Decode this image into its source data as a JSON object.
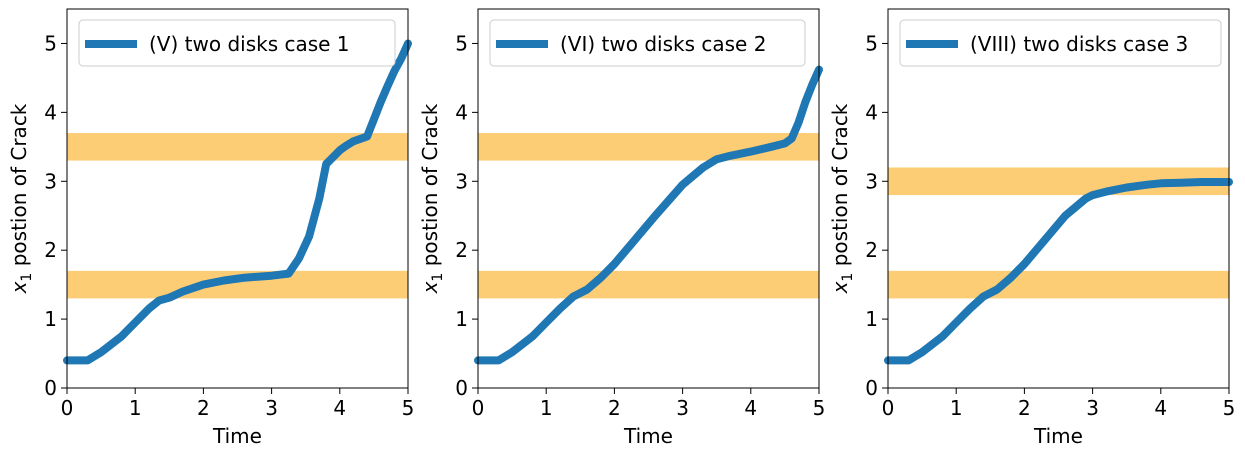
{
  "chart_data": [
    {
      "type": "line",
      "xlabel": "Time",
      "ylabel": "x_1 postion of Crack",
      "ylabel_sub": "1",
      "ylabel_rest": " postion of Crack",
      "xlim": [
        0,
        5
      ],
      "ylim": [
        0,
        5.5
      ],
      "xticks": [
        "0",
        "1",
        "2",
        "3",
        "4",
        "5"
      ],
      "yticks": [
        "0",
        "1",
        "2",
        "3",
        "4",
        "5"
      ],
      "legend_placement": "upper-left",
      "line_color": "#1f77b4",
      "band_color": "#fdbf50",
      "bands": [
        [
          1.3,
          1.7
        ],
        [
          3.3,
          3.7
        ]
      ],
      "series": [
        {
          "name": "(V) two disks case 1",
          "x": [
            0,
            0.3,
            0.5,
            0.8,
            1.0,
            1.2,
            1.35,
            1.5,
            1.7,
            2.0,
            2.3,
            2.6,
            3.0,
            3.25,
            3.4,
            3.55,
            3.7,
            3.8,
            3.9,
            4.0,
            4.1,
            4.2,
            4.4,
            4.5,
            4.6,
            4.7,
            4.8,
            4.9,
            5.0
          ],
          "y": [
            0.4,
            0.4,
            0.52,
            0.75,
            0.95,
            1.15,
            1.27,
            1.31,
            1.4,
            1.5,
            1.56,
            1.6,
            1.63,
            1.66,
            1.88,
            2.2,
            2.75,
            3.25,
            3.35,
            3.45,
            3.52,
            3.58,
            3.65,
            3.9,
            4.15,
            4.38,
            4.6,
            4.78,
            5.0
          ]
        }
      ]
    },
    {
      "type": "line",
      "xlabel": "Time",
      "ylabel": "x_1 postion of Crack",
      "ylabel_sub": "1",
      "ylabel_rest": " postion of Crack",
      "xlim": [
        0,
        5
      ],
      "ylim": [
        0,
        5.5
      ],
      "xticks": [
        "0",
        "1",
        "2",
        "3",
        "4",
        "5"
      ],
      "yticks": [
        "0",
        "1",
        "2",
        "3",
        "4",
        "5"
      ],
      "legend_placement": "upper-left",
      "line_color": "#1f77b4",
      "band_color": "#fdbf50",
      "bands": [
        [
          1.3,
          1.7
        ],
        [
          3.3,
          3.7
        ]
      ],
      "series": [
        {
          "name": "(VI) two disks case 2",
          "x": [
            0,
            0.3,
            0.5,
            0.8,
            1.0,
            1.2,
            1.4,
            1.6,
            1.8,
            2.0,
            2.3,
            2.6,
            3.0,
            3.3,
            3.5,
            3.7,
            4.0,
            4.3,
            4.5,
            4.6,
            4.7,
            4.8,
            4.9,
            5.0
          ],
          "y": [
            0.4,
            0.4,
            0.52,
            0.75,
            0.95,
            1.15,
            1.33,
            1.43,
            1.6,
            1.8,
            2.15,
            2.5,
            2.95,
            3.2,
            3.32,
            3.37,
            3.43,
            3.5,
            3.55,
            3.62,
            3.85,
            4.15,
            4.4,
            4.62
          ]
        }
      ]
    },
    {
      "type": "line",
      "xlabel": "Time",
      "ylabel": "x_1 postion of Crack",
      "ylabel_sub": "1",
      "ylabel_rest": " postion of Crack",
      "xlim": [
        0,
        5
      ],
      "ylim": [
        0,
        5.5
      ],
      "xticks": [
        "0",
        "1",
        "2",
        "3",
        "4",
        "5"
      ],
      "yticks": [
        "0",
        "1",
        "2",
        "3",
        "4",
        "5"
      ],
      "legend_placement": "upper-left",
      "line_color": "#1f77b4",
      "band_color": "#fdbf50",
      "bands": [
        [
          1.3,
          1.7
        ],
        [
          2.8,
          3.2
        ]
      ],
      "series": [
        {
          "name": "(VIII) two disks case 3",
          "x": [
            0,
            0.3,
            0.5,
            0.8,
            1.0,
            1.2,
            1.4,
            1.6,
            1.8,
            2.0,
            2.3,
            2.6,
            2.9,
            3.0,
            3.2,
            3.5,
            3.8,
            4.0,
            4.3,
            4.6,
            5.0
          ],
          "y": [
            0.4,
            0.4,
            0.52,
            0.75,
            0.95,
            1.15,
            1.33,
            1.43,
            1.6,
            1.8,
            2.15,
            2.5,
            2.75,
            2.8,
            2.85,
            2.91,
            2.95,
            2.97,
            2.98,
            2.99,
            2.99
          ]
        }
      ]
    }
  ]
}
